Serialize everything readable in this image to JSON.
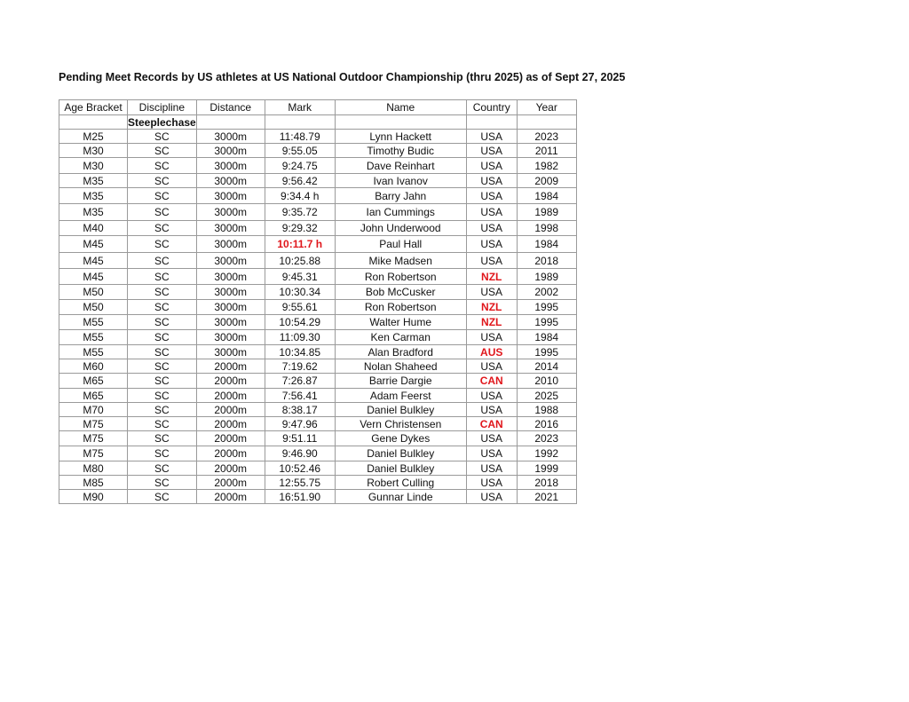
{
  "title": "Pending Meet Records by US athletes at US National Outdoor Championship (thru 2025) as of Sept 27, 2025",
  "colors": {
    "highlight": "#e0161b"
  },
  "table": {
    "headers": [
      "Age Bracket",
      "Discipline",
      "Distance",
      "Mark",
      "Name",
      "Country",
      "Year"
    ],
    "section_label": "Steeplechase",
    "rows": [
      {
        "age": "M25",
        "discipline": "SC",
        "distance": "3000m",
        "mark": "11:48.79",
        "name": "Lynn Hackett",
        "country": "USA",
        "year": "2023"
      },
      {
        "age": "M30",
        "discipline": "SC",
        "distance": "3000m",
        "mark": "9:55.05",
        "name": "Timothy Budic",
        "country": "USA",
        "year": "2011"
      },
      {
        "age": "M30",
        "discipline": "SC",
        "distance": "3000m",
        "mark": "9:24.75",
        "name": "Dave Reinhart",
        "country": "USA",
        "year": "1982"
      },
      {
        "age": "M35",
        "discipline": "SC",
        "distance": "3000m",
        "mark": "9:56.42",
        "name": "Ivan Ivanov",
        "country": "USA",
        "year": "2009"
      },
      {
        "age": "M35",
        "discipline": "SC",
        "distance": "3000m",
        "mark": "9:34.4 h",
        "name": "Barry Jahn",
        "country": "USA",
        "year": "1984"
      },
      {
        "age": "M35",
        "discipline": "SC",
        "distance": "3000m",
        "mark": "9:35.72",
        "name": "Ian Cummings",
        "country": "USA",
        "year": "1989"
      },
      {
        "age": "M40",
        "discipline": "SC",
        "distance": "3000m",
        "mark": "9:29.32",
        "name": "John Underwood",
        "country": "USA",
        "year": "1998"
      },
      {
        "age": "M45",
        "discipline": "SC",
        "distance": "3000m",
        "mark": "10:11.7 h",
        "mark_highlight": true,
        "name": "Paul Hall",
        "country": "USA",
        "year": "1984"
      },
      {
        "age": "M45",
        "discipline": "SC",
        "distance": "3000m",
        "mark": "10:25.88",
        "name": "Mike Madsen",
        "country": "USA",
        "year": "2018"
      },
      {
        "age": "M45",
        "discipline": "SC",
        "distance": "3000m",
        "mark": "9:45.31",
        "name": "Ron Robertson",
        "country": "NZL",
        "country_highlight": true,
        "year": "1989"
      },
      {
        "age": "M50",
        "discipline": "SC",
        "distance": "3000m",
        "mark": "10:30.34",
        "name": "Bob McCusker",
        "country": "USA",
        "year": "2002"
      },
      {
        "age": "M50",
        "discipline": "SC",
        "distance": "3000m",
        "mark": "9:55.61",
        "name": "Ron Robertson",
        "country": "NZL",
        "country_highlight": true,
        "year": "1995"
      },
      {
        "age": "M55",
        "discipline": "SC",
        "distance": "3000m",
        "mark": "10:54.29",
        "name": "Walter Hume",
        "country": "NZL",
        "country_highlight": true,
        "year": "1995"
      },
      {
        "age": "M55",
        "discipline": "SC",
        "distance": "3000m",
        "mark": "11:09.30",
        "name": "Ken Carman",
        "country": "USA",
        "year": "1984"
      },
      {
        "age": "M55",
        "discipline": "SC",
        "distance": "3000m",
        "mark": "10:34.85",
        "name": "Alan Bradford",
        "country": "AUS",
        "country_highlight": true,
        "year": "1995"
      },
      {
        "age": "M60",
        "discipline": "SC",
        "distance": "2000m",
        "mark": "7:19.62",
        "name": "Nolan Shaheed",
        "country": "USA",
        "year": "2014"
      },
      {
        "age": "M65",
        "discipline": "SC",
        "distance": "2000m",
        "mark": "7:26.87",
        "name": "Barrie Dargie",
        "country": "CAN",
        "country_highlight": true,
        "year": "2010"
      },
      {
        "age": "M65",
        "discipline": "SC",
        "distance": "2000m",
        "mark": "7:56.41",
        "name": "Adam Feerst",
        "country": "USA",
        "year": "2025"
      },
      {
        "age": "M70",
        "discipline": "SC",
        "distance": "2000m",
        "mark": "8:38.17",
        "name": "Daniel Bulkley",
        "country": "USA",
        "year": "1988"
      },
      {
        "age": "M75",
        "discipline": "SC",
        "distance": "2000m",
        "mark": "9:47.96",
        "name": "Vern Christensen",
        "country": "CAN",
        "country_highlight": true,
        "year": "2016"
      },
      {
        "age": "M75",
        "discipline": "SC",
        "distance": "2000m",
        "mark": "9:51.11",
        "name": "Gene Dykes",
        "country": "USA",
        "year": "2023"
      },
      {
        "age": "M75",
        "discipline": "SC",
        "distance": "2000m",
        "mark": "9:46.90",
        "name": "Daniel Bulkley",
        "country": "USA",
        "year": "1992"
      },
      {
        "age": "M80",
        "discipline": "SC",
        "distance": "2000m",
        "mark": "10:52.46",
        "name": "Daniel Bulkley",
        "country": "USA",
        "year": "1999"
      },
      {
        "age": "M85",
        "discipline": "SC",
        "distance": "2000m",
        "mark": "12:55.75",
        "name": "Robert Culling",
        "country": "USA",
        "year": "2018"
      },
      {
        "age": "M90",
        "discipline": "SC",
        "distance": "2000m",
        "mark": "16:51.90",
        "name": "Gunnar Linde",
        "country": "USA",
        "year": "2021"
      }
    ]
  }
}
